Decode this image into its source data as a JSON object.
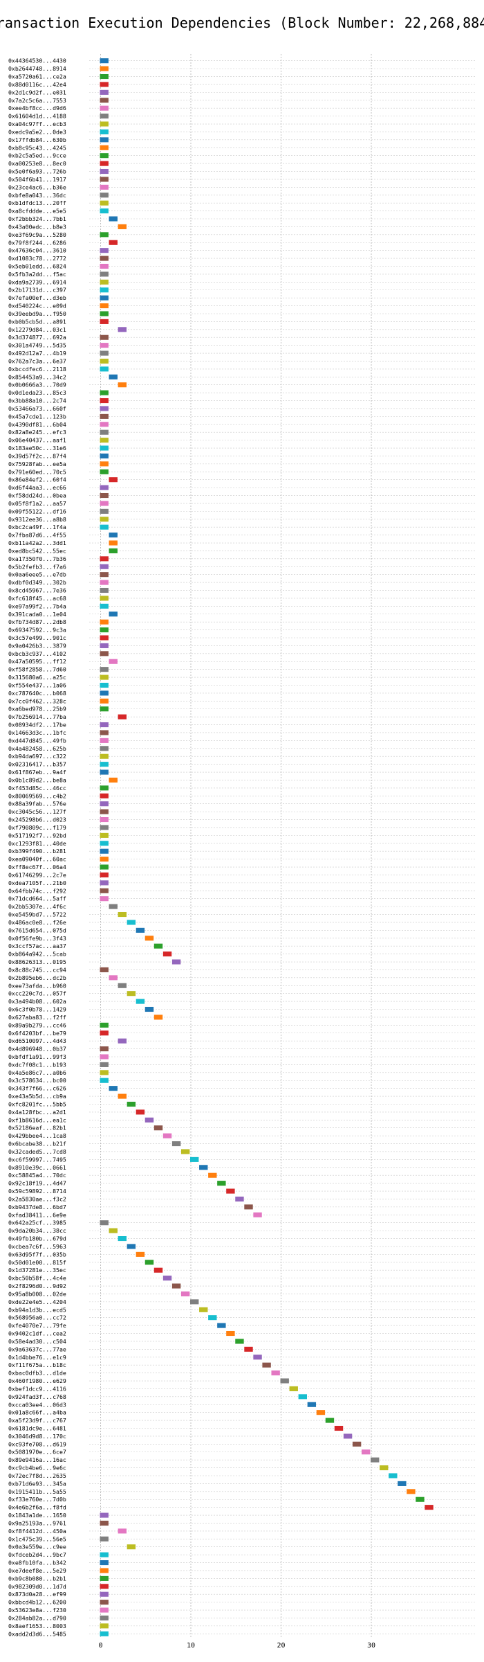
{
  "chart_data": {
    "type": "gantt",
    "title": "Transaction Execution Dependencies (Block Number: 22,268,884)",
    "xlabel": "",
    "ylabel": "",
    "xlim": [
      -1.5,
      38.5
    ],
    "x_ticks": [
      0,
      10,
      20,
      30
    ],
    "grid": true,
    "colors": [
      "#1f77b4",
      "#ff7f0e",
      "#2ca02c",
      "#d62728",
      "#9467bd",
      "#8c564b",
      "#e377c2",
      "#7f7f7f",
      "#bcbd22",
      "#17becf"
    ],
    "transactions": [
      {
        "label": "0x44364530...4430",
        "start": 0
      },
      {
        "label": "0xb2644748...8914",
        "start": 0
      },
      {
        "label": "0xa5720a61...ce2a",
        "start": 0
      },
      {
        "label": "0x88d0116c...42e4",
        "start": 0
      },
      {
        "label": "0x2d1c9d2f...e031",
        "start": 0
      },
      {
        "label": "0x7a2c5c6a...7553",
        "start": 0
      },
      {
        "label": "0xee4bf8cc...d9d6",
        "start": 0
      },
      {
        "label": "0x61604d1d...4188",
        "start": 0
      },
      {
        "label": "0xa04c97ff...ecb3",
        "start": 0
      },
      {
        "label": "0xedc9a5e2...0de3",
        "start": 0
      },
      {
        "label": "0x17ffdb84...630b",
        "start": 0
      },
      {
        "label": "0xb8c95c43...4245",
        "start": 0
      },
      {
        "label": "0xb2c5a5ed...9cce",
        "start": 0
      },
      {
        "label": "0xa00253e8...8ec0",
        "start": 0
      },
      {
        "label": "0x5e0f6a93...726b",
        "start": 0
      },
      {
        "label": "0x504f6b41...1917",
        "start": 0
      },
      {
        "label": "0x23ce4ac6...b36e",
        "start": 0
      },
      {
        "label": "0xbfe8a043...36dc",
        "start": 0
      },
      {
        "label": "0xb1dfdc13...20ff",
        "start": 0
      },
      {
        "label": "0xa8cfddde...e5e5",
        "start": 0
      },
      {
        "label": "0xf2bbb324...7bb1",
        "start": 1
      },
      {
        "label": "0x43a00edc...b8e3",
        "start": 2
      },
      {
        "label": "0xe3f69c9a...5280",
        "start": 0
      },
      {
        "label": "0x79f8f244...6286",
        "start": 1
      },
      {
        "label": "0x47636c04...3610",
        "start": 0
      },
      {
        "label": "0xd1083c78...2772",
        "start": 0
      },
      {
        "label": "0x5eb01edd...6824",
        "start": 0
      },
      {
        "label": "0x5fb3a2dd...f5ac",
        "start": 0
      },
      {
        "label": "0xda9a2739...6914",
        "start": 0
      },
      {
        "label": "0x2b17131d...c397",
        "start": 0
      },
      {
        "label": "0x7efa00ef...d3eb",
        "start": 0
      },
      {
        "label": "0xd540224c...e09d",
        "start": 0
      },
      {
        "label": "0x39eebd9a...f950",
        "start": 0
      },
      {
        "label": "0xb0b5cb5d...a891",
        "start": 0
      },
      {
        "label": "0x12279d84...03c1",
        "start": 2
      },
      {
        "label": "0x3d374877...692a",
        "start": 0
      },
      {
        "label": "0x301a4749...5d35",
        "start": 0
      },
      {
        "label": "0x492d12a7...4b19",
        "start": 0
      },
      {
        "label": "0x762a7c3a...6e37",
        "start": 0
      },
      {
        "label": "0xbccdfec6...2118",
        "start": 0
      },
      {
        "label": "0x854453a9...34c2",
        "start": 1
      },
      {
        "label": "0x0b0666a3...70d9",
        "start": 2
      },
      {
        "label": "0x0d1eda23...85c3",
        "start": 0
      },
      {
        "label": "0x3bb88a10...2c74",
        "start": 0
      },
      {
        "label": "0x53466a73...660f",
        "start": 0
      },
      {
        "label": "0x45a7cde1...123b",
        "start": 0
      },
      {
        "label": "0x4390df81...6b04",
        "start": 0
      },
      {
        "label": "0x82a8e245...efc3",
        "start": 0
      },
      {
        "label": "0x06e40437...aaf1",
        "start": 0
      },
      {
        "label": "0x183ae50c...31e6",
        "start": 0
      },
      {
        "label": "0x39d57f2c...87f4",
        "start": 0
      },
      {
        "label": "0x75928fab...ee5a",
        "start": 0
      },
      {
        "label": "0x791e60ed...70c5",
        "start": 0
      },
      {
        "label": "0x86e84ef2...60f4",
        "start": 1
      },
      {
        "label": "0xd6f44aa3...ec66",
        "start": 0
      },
      {
        "label": "0xf58dd24d...0bea",
        "start": 0
      },
      {
        "label": "0x05f8f1a2...aa57",
        "start": 0
      },
      {
        "label": "0x09f55122...df16",
        "start": 0
      },
      {
        "label": "0x9312ee36...a8b8",
        "start": 0
      },
      {
        "label": "0xbc2ca49f...1f4a",
        "start": 0
      },
      {
        "label": "0x7fba87d6...4f55",
        "start": 1
      },
      {
        "label": "0xb11a42a2...3dd1",
        "start": 1
      },
      {
        "label": "0xed8bc542...55ec",
        "start": 1
      },
      {
        "label": "0xa17350f0...7b36",
        "start": 0
      },
      {
        "label": "0x5b2fefb3...f7a6",
        "start": 0
      },
      {
        "label": "0x0aa6eee5...e7db",
        "start": 0
      },
      {
        "label": "0xdbf0d349...302b",
        "start": 0
      },
      {
        "label": "0x8cd45967...7e36",
        "start": 0
      },
      {
        "label": "0xfc618f45...ac68",
        "start": 0
      },
      {
        "label": "0xe97a99f2...7b4a",
        "start": 0
      },
      {
        "label": "0x391cada0...1e04",
        "start": 1
      },
      {
        "label": "0xfb734d87...2db8",
        "start": 0
      },
      {
        "label": "0x69347592...9c3a",
        "start": 0
      },
      {
        "label": "0x3c57e499...901c",
        "start": 0
      },
      {
        "label": "0x9a0426b3...3879",
        "start": 0
      },
      {
        "label": "0xbcb3c937...4102",
        "start": 0
      },
      {
        "label": "0x47a50595...ff12",
        "start": 1
      },
      {
        "label": "0xf58f2858...7d60",
        "start": 0
      },
      {
        "label": "0x315680a6...a25c",
        "start": 0
      },
      {
        "label": "0xf554e437...1a06",
        "start": 0
      },
      {
        "label": "0xc787640c...b068",
        "start": 0
      },
      {
        "label": "0x7cc0f462...328c",
        "start": 0
      },
      {
        "label": "0xa6bed978...25b9",
        "start": 0
      },
      {
        "label": "0x7b256914...77ba",
        "start": 2
      },
      {
        "label": "0x08934df2...17be",
        "start": 0
      },
      {
        "label": "0x14663d3c...1bfc",
        "start": 0
      },
      {
        "label": "0xd447d845...49fb",
        "start": 0
      },
      {
        "label": "0x4a482458...625b",
        "start": 0
      },
      {
        "label": "0xb94da697...c322",
        "start": 0
      },
      {
        "label": "0x02316417...b357",
        "start": 0
      },
      {
        "label": "0x61f867eb...9a4f",
        "start": 0
      },
      {
        "label": "0x0b1c89d2...be8a",
        "start": 1
      },
      {
        "label": "0xf453d85c...46cc",
        "start": 0
      },
      {
        "label": "0x80069569...c4b2",
        "start": 0
      },
      {
        "label": "0x88a39fab...576e",
        "start": 0
      },
      {
        "label": "0xc3045c56...127f",
        "start": 0
      },
      {
        "label": "0x245298b6...d023",
        "start": 0
      },
      {
        "label": "0xf790809c...f179",
        "start": 0
      },
      {
        "label": "0x517192f7...92bd",
        "start": 0
      },
      {
        "label": "0xc1293f81...40de",
        "start": 0
      },
      {
        "label": "0xb399f490...b281",
        "start": 0
      },
      {
        "label": "0xea09040f...60ac",
        "start": 0
      },
      {
        "label": "0xff8ec67f...06a4",
        "start": 0
      },
      {
        "label": "0x61746299...2c7e",
        "start": 0
      },
      {
        "label": "0xdea7105f...21b0",
        "start": 0
      },
      {
        "label": "0x64fbb74c...f292",
        "start": 0
      },
      {
        "label": "0x71dcd664...5aff",
        "start": 0
      },
      {
        "label": "0x2bb5307e...4f6c",
        "start": 1
      },
      {
        "label": "0xe5459bd7...5722",
        "start": 2
      },
      {
        "label": "0x486ac0e8...f26e",
        "start": 3
      },
      {
        "label": "0x7615d654...075d",
        "start": 4
      },
      {
        "label": "0x0f56fe9b...3f43",
        "start": 5
      },
      {
        "label": "0x3ccf57ac...aa37",
        "start": 6
      },
      {
        "label": "0xb864a942...5cab",
        "start": 7
      },
      {
        "label": "0x88626313...0195",
        "start": 8
      },
      {
        "label": "0x8c88c745...cc94",
        "start": 0
      },
      {
        "label": "0x2b895eb6...dc2b",
        "start": 1
      },
      {
        "label": "0xee73afda...b960",
        "start": 2
      },
      {
        "label": "0xcc220c7d...057f",
        "start": 3
      },
      {
        "label": "0x3a494b08...602a",
        "start": 4
      },
      {
        "label": "0x6c3f0b78...1429",
        "start": 5
      },
      {
        "label": "0x627aba83...f2ff",
        "start": 6
      },
      {
        "label": "0x89a9b279...cc46",
        "start": 0
      },
      {
        "label": "0x6f4203bf...be79",
        "start": 0
      },
      {
        "label": "0xd6510097...4d43",
        "start": 2
      },
      {
        "label": "0x4d896948...0b37",
        "start": 0
      },
      {
        "label": "0xbfdf1a91...99f3",
        "start": 0
      },
      {
        "label": "0xdc7f08c1...b193",
        "start": 0
      },
      {
        "label": "0x4a5e86c7...a0b6",
        "start": 0
      },
      {
        "label": "0x3c578634...bc00",
        "start": 0
      },
      {
        "label": "0x343f7f66...c626",
        "start": 1
      },
      {
        "label": "0xe43a5b5d...cb9a",
        "start": 2
      },
      {
        "label": "0xfc8201fc...5bb5",
        "start": 3
      },
      {
        "label": "0x4a128fbc...a2d1",
        "start": 4
      },
      {
        "label": "0xf1b8616d...ea1c",
        "start": 5
      },
      {
        "label": "0x52186eaf...82b1",
        "start": 6
      },
      {
        "label": "0x429bbee4...1ca8",
        "start": 7
      },
      {
        "label": "0x6bcabe38...b21f",
        "start": 8
      },
      {
        "label": "0x32cadedS...7cd8",
        "start": 9
      },
      {
        "label": "0xc6f59997...7495",
        "start": 10
      },
      {
        "label": "0x8910e39c...0661",
        "start": 11
      },
      {
        "label": "0xc58845a4...70dc",
        "start": 12
      },
      {
        "label": "0x92c18f19...4d47",
        "start": 13
      },
      {
        "label": "0x59c59892...8714",
        "start": 14
      },
      {
        "label": "0x2a5830ae...f3c2",
        "start": 15
      },
      {
        "label": "0xb9437de8...6bd7",
        "start": 16
      },
      {
        "label": "0xfad38411...6e9e",
        "start": 17
      },
      {
        "label": "0x642a25cf...3985",
        "start": 0
      },
      {
        "label": "0x9da20b34...38cc",
        "start": 1
      },
      {
        "label": "0x49fb180b...679d",
        "start": 2
      },
      {
        "label": "0xcbea7c6f...5963",
        "start": 3
      },
      {
        "label": "0x63d95f7f...035b",
        "start": 4
      },
      {
        "label": "0x50d01e00...815f",
        "start": 5
      },
      {
        "label": "0x1d37281e...35ec",
        "start": 6
      },
      {
        "label": "0xbc50b58f...4c4e",
        "start": 7
      },
      {
        "label": "0x2f8296d0...9d92",
        "start": 8
      },
      {
        "label": "0x95a8b008...02de",
        "start": 9
      },
      {
        "label": "0xde22e4e5...4204",
        "start": 10
      },
      {
        "label": "0xb94a1d3b...ecd5",
        "start": 11
      },
      {
        "label": "0x568956a0...cc72",
        "start": 12
      },
      {
        "label": "0xfe4070e7...79fe",
        "start": 13
      },
      {
        "label": "0x9402c1df...cea2",
        "start": 14
      },
      {
        "label": "0x58e4ad30...c504",
        "start": 15
      },
      {
        "label": "0x9a63637c...77ae",
        "start": 16
      },
      {
        "label": "0x1d4bbe76...e1c9",
        "start": 17
      },
      {
        "label": "0xf11f675a...b18c",
        "start": 18
      },
      {
        "label": "0xbac0dfb3...d1de",
        "start": 19
      },
      {
        "label": "0x460f1980...e629",
        "start": 20
      },
      {
        "label": "0xbef1dcc9...4116",
        "start": 21
      },
      {
        "label": "0x924fad3f...c768",
        "start": 22
      },
      {
        "label": "0xcca03ee4...06d3",
        "start": 23
      },
      {
        "label": "0x01a8c66f...a4ba",
        "start": 24
      },
      {
        "label": "0xa5f23d9f...c767",
        "start": 25
      },
      {
        "label": "0x6181dc9e...6481",
        "start": 26
      },
      {
        "label": "0x3046d9d8...170c",
        "start": 27
      },
      {
        "label": "0xc93fe708...d619",
        "start": 28
      },
      {
        "label": "0x5081970e...6ce7",
        "start": 29
      },
      {
        "label": "0x89e9416a...16ac",
        "start": 30
      },
      {
        "label": "0xc9cb4be6...9e6c",
        "start": 31
      },
      {
        "label": "0x72ec7f8d...2635",
        "start": 32
      },
      {
        "label": "0xb71d6e93...345a",
        "start": 33
      },
      {
        "label": "0x1915411b...5a55",
        "start": 34
      },
      {
        "label": "0xf33e760e...7d0b",
        "start": 35
      },
      {
        "label": "0x4e6b2f6a...f8fd",
        "start": 36
      },
      {
        "label": "0x1843a1de...1650",
        "start": 0
      },
      {
        "label": "0x9a25193a...9761",
        "start": 0
      },
      {
        "label": "0xf8f4412d...450a",
        "start": 2
      },
      {
        "label": "0x1c475c39...56e5",
        "start": 0
      },
      {
        "label": "0x0a3e559e...c9ee",
        "start": 3
      },
      {
        "label": "0xfdceb2d4...9bc7",
        "start": 0
      },
      {
        "label": "0xe8fb10fa...b342",
        "start": 0
      },
      {
        "label": "0xe7deef8e...5e29",
        "start": 0
      },
      {
        "label": "0xb9c8b080...b2b1",
        "start": 0
      },
      {
        "label": "0x982309d0...1d7d",
        "start": 0
      },
      {
        "label": "0x873d0a28...ef99",
        "start": 0
      },
      {
        "label": "0xbbcd4b12...6200",
        "start": 0
      },
      {
        "label": "0x53623e8a...f230",
        "start": 0
      },
      {
        "label": "0x284ab82a...d790",
        "start": 0
      },
      {
        "label": "0x8aef1653...8003",
        "start": 0
      },
      {
        "label": "0xadd2d3d6...5485",
        "start": 0
      }
    ]
  }
}
